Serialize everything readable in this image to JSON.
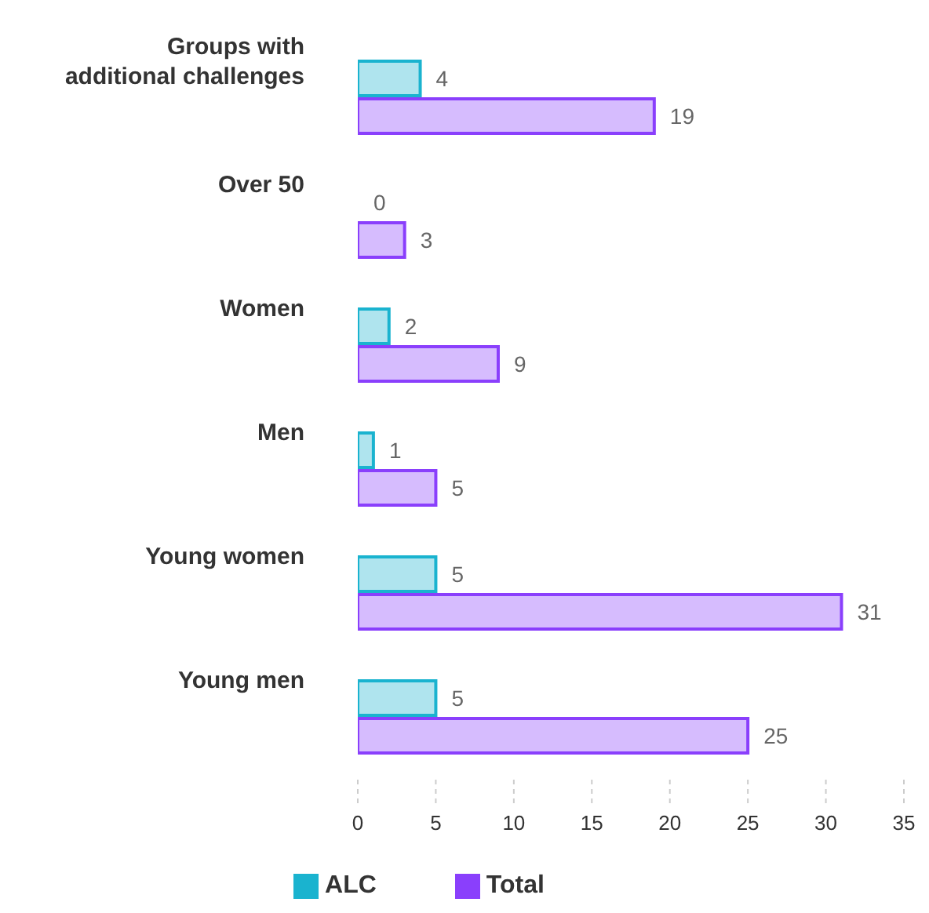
{
  "chart_data": {
    "type": "bar",
    "orientation": "horizontal",
    "categories": [
      "Groups with additional challenges",
      "Over 50",
      "Women",
      "Men",
      "Young women",
      "Young men"
    ],
    "series": [
      {
        "name": "ALC",
        "color": "#1ab3cf",
        "values": [
          4,
          0,
          2,
          1,
          5,
          5
        ]
      },
      {
        "name": "Total",
        "color": "#8a3ffc",
        "values": [
          19,
          3,
          9,
          5,
          31,
          25
        ]
      }
    ],
    "xlim": [
      0,
      35
    ],
    "xticks": [
      0,
      5,
      10,
      15,
      20,
      25,
      30,
      35
    ],
    "legend": "bottom",
    "data_labels": true
  }
}
